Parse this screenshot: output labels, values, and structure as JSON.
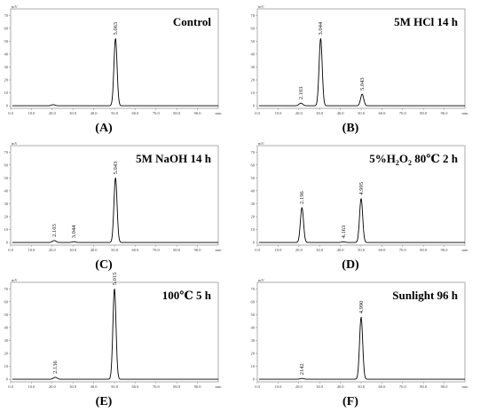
{
  "panels": [
    {
      "caption": "(A)",
      "title": "Control",
      "unit_label": "mV",
      "x_unit": "min",
      "chart_data": {
        "type": "line",
        "x_range": [
          0,
          100
        ],
        "y_range": [
          -2,
          75
        ],
        "x_ticks": [
          "0.0",
          "10.0",
          "20.0",
          "30.0",
          "40.0",
          "50.0",
          "60.0",
          "70.0",
          "80.0",
          "90.0",
          "min"
        ],
        "y_ticks": [
          0,
          10,
          20,
          30,
          40,
          50,
          60,
          70
        ],
        "peaks": [
          {
            "x": 20.5,
            "height": 0.8,
            "label": ""
          },
          {
            "x": 50.5,
            "height": 52,
            "label": "5.063"
          }
        ]
      }
    },
    {
      "caption": "(B)",
      "title": "5M HCl 14 h",
      "unit_label": "mV",
      "x_unit": "min",
      "chart_data": {
        "type": "line",
        "x_range": [
          0,
          100
        ],
        "y_range": [
          -2,
          75
        ],
        "x_ticks": [
          "0.0",
          "10.0",
          "20.0",
          "30.0",
          "40.0",
          "50.0",
          "60.0",
          "70.0",
          "80.0",
          "90.0",
          "min"
        ],
        "y_ticks": [
          0,
          10,
          20,
          30,
          40,
          50,
          60,
          70
        ],
        "peaks": [
          {
            "x": 21,
            "height": 2,
            "label": "2.103"
          },
          {
            "x": 30.5,
            "height": 52,
            "label": "3.044"
          },
          {
            "x": 50.5,
            "height": 9,
            "label": "5.043"
          }
        ]
      }
    },
    {
      "caption": "(C)",
      "title": "5M NaOH 14 h",
      "unit_label": "mV",
      "x_unit": "min",
      "chart_data": {
        "type": "line",
        "x_range": [
          0,
          100
        ],
        "y_range": [
          -2,
          75
        ],
        "x_ticks": [
          "0.0",
          "10.0",
          "20.0",
          "30.0",
          "40.0",
          "50.0",
          "60.0",
          "70.0",
          "80.0",
          "90.0",
          "min"
        ],
        "y_ticks": [
          0,
          10,
          20,
          30,
          40,
          50,
          60,
          70
        ],
        "peaks": [
          {
            "x": 21,
            "height": 1.5,
            "label": "2.103"
          },
          {
            "x": 30.5,
            "height": 0.6,
            "label": "3.044"
          },
          {
            "x": 50.5,
            "height": 50,
            "label": "5.043"
          }
        ]
      }
    },
    {
      "caption": "(D)",
      "title": "5%H2O2 80℃ 2 h",
      "title_parts": [
        "5%H",
        "2",
        "O",
        "2",
        " 80℃ 2 h"
      ],
      "unit_label": "mV",
      "x_unit": "min",
      "chart_data": {
        "type": "line",
        "x_range": [
          0,
          100
        ],
        "y_range": [
          -2,
          75
        ],
        "x_ticks": [
          "0.0",
          "10.0",
          "20.0",
          "30.0",
          "40.0",
          "50.0",
          "60.0",
          "70.0",
          "80.0",
          "90.0",
          "min"
        ],
        "y_ticks": [
          0,
          10,
          20,
          30,
          40,
          50,
          60,
          70
        ],
        "peaks": [
          {
            "x": 21.5,
            "height": 27,
            "label": "2.196"
          },
          {
            "x": 41.5,
            "height": 0.5,
            "label": "4.163"
          },
          {
            "x": 50,
            "height": 34,
            "label": "4.995"
          }
        ]
      }
    },
    {
      "caption": "(E)",
      "title": "100℃ 5 h",
      "unit_label": "mV",
      "x_unit": "min",
      "chart_data": {
        "type": "line",
        "x_range": [
          0,
          100
        ],
        "y_range": [
          -2,
          75
        ],
        "x_ticks": [
          "0.0",
          "10.0",
          "20.0",
          "30.0",
          "40.0",
          "50.0",
          "60.0",
          "70.0",
          "80.0",
          "90.0",
          "min"
        ],
        "y_ticks": [
          0,
          10,
          20,
          30,
          40,
          50,
          60,
          70
        ],
        "peaks": [
          {
            "x": 21.5,
            "height": 1.5,
            "label": "2.136"
          },
          {
            "x": 50,
            "height": 70,
            "label": "5.015"
          }
        ]
      }
    },
    {
      "caption": "(F)",
      "title": "Sunlight 96 h",
      "unit_label": "mV",
      "x_unit": "min",
      "chart_data": {
        "type": "line",
        "x_range": [
          0,
          100
        ],
        "y_range": [
          -2,
          75
        ],
        "x_ticks": [
          "0.0",
          "10.0",
          "20.0",
          "30.0",
          "40.0",
          "50.0",
          "60.0",
          "70.0",
          "80.0",
          "90.0",
          "min"
        ],
        "y_ticks": [
          0,
          10,
          20,
          30,
          40,
          50,
          60,
          70
        ],
        "peaks": [
          {
            "x": 21.5,
            "height": 0.6,
            "label": "2142"
          },
          {
            "x": 50,
            "height": 48,
            "label": "4.990"
          }
        ]
      }
    }
  ]
}
